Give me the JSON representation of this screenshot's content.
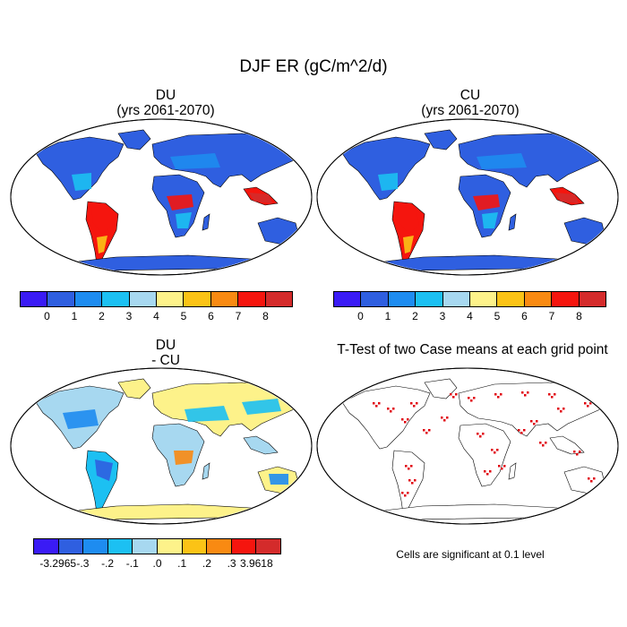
{
  "figure_title": "DJF ER (gC/m^2/d)",
  "panels": [
    {
      "id": "du",
      "title_line1": "DU",
      "title_line2": "(yrs 2061-2070)"
    },
    {
      "id": "cu",
      "title_line1": "CU",
      "title_line2": "(yrs 2061-2070)"
    },
    {
      "id": "diff",
      "title_line1": "DU",
      "title_line2": "- CU"
    },
    {
      "id": "ttest",
      "title_line1": "T-Test of two Case means at each grid point",
      "title_line2": ""
    }
  ],
  "colorbar_abs": {
    "colors": [
      "#3a1bf5",
      "#2f5fe0",
      "#1e8cf0",
      "#1cc0f2",
      "#a7d8f0",
      "#fdf28a",
      "#fbc316",
      "#f98a12",
      "#f5150e",
      "#d42b2b"
    ],
    "labels": [
      "0",
      "1",
      "2",
      "3",
      "4",
      "5",
      "6",
      "7",
      "8"
    ]
  },
  "colorbar_diff": {
    "colors": [
      "#3a1bf5",
      "#2f5fe0",
      "#1e8cf0",
      "#1cc0f2",
      "#a7d8f0",
      "#fdf28a",
      "#fbc316",
      "#f98a12",
      "#f5150e",
      "#d42b2b"
    ],
    "labels": [
      "-3.2965",
      "-.3",
      "-.2",
      "-.1",
      ".0",
      ".1",
      ".2",
      ".3",
      "3.9618"
    ]
  },
  "significance_note": "Cells are significant at 0.1 level",
  "colors": {
    "ocean": "#ffffff",
    "coast": "#000000",
    "sig": "#e0000c"
  }
}
